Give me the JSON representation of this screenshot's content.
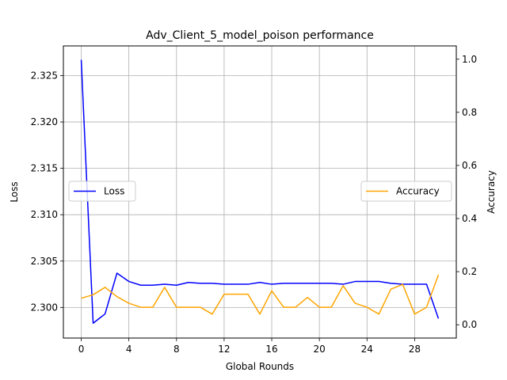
{
  "chart_data": {
    "type": "line",
    "title": "Adv_Client_5_model_poison performance",
    "xlabel": "Global Rounds",
    "ylabel_left": "Loss",
    "ylabel_right": "Accuracy",
    "x": [
      0,
      1,
      2,
      3,
      4,
      5,
      6,
      7,
      8,
      9,
      10,
      11,
      12,
      13,
      14,
      15,
      16,
      17,
      18,
      19,
      20,
      21,
      22,
      23,
      24,
      25,
      26,
      27,
      28,
      29,
      30
    ],
    "xlim": [
      -1.5,
      31.5
    ],
    "xticks": [
      0,
      4,
      8,
      12,
      16,
      20,
      24,
      28
    ],
    "ylim_left": [
      2.2967,
      2.3282
    ],
    "yticks_left": [
      2.3,
      2.305,
      2.31,
      2.315,
      2.32,
      2.325
    ],
    "ytick_labels_left": [
      "2.300",
      "2.305",
      "2.310",
      "2.315",
      "2.320",
      "2.325"
    ],
    "ylim_right": [
      -0.05,
      1.05
    ],
    "yticks_right": [
      0.0,
      0.2,
      0.4,
      0.6,
      0.8,
      1.0
    ],
    "ytick_labels_right": [
      "0.0",
      "0.2",
      "0.4",
      "0.6",
      "0.8",
      "1.0"
    ],
    "grid": true,
    "series": [
      {
        "name": "Loss",
        "axis": "left",
        "color": "#0000ff",
        "legend_position": "center-left",
        "values": [
          2.3267,
          2.2983,
          2.2993,
          2.3037,
          2.3028,
          2.3024,
          2.3024,
          2.3025,
          2.3024,
          2.3027,
          2.3026,
          2.3026,
          2.3025,
          2.3025,
          2.3025,
          2.3027,
          2.3025,
          2.3026,
          2.3026,
          2.3026,
          2.3026,
          2.3026,
          2.3025,
          2.3028,
          2.3028,
          2.3028,
          2.3026,
          2.3025,
          2.3025,
          2.3025,
          2.2988
        ]
      },
      {
        "name": "Accuracy",
        "axis": "right",
        "color": "#ffa500",
        "legend_position": "center-right",
        "values": [
          0.1,
          0.113,
          0.141,
          0.106,
          0.081,
          0.066,
          0.066,
          0.141,
          0.066,
          0.066,
          0.066,
          0.04,
          0.115,
          0.115,
          0.115,
          0.04,
          0.128,
          0.066,
          0.066,
          0.103,
          0.066,
          0.066,
          0.147,
          0.081,
          0.066,
          0.04,
          0.134,
          0.152,
          0.04,
          0.066,
          0.188
        ]
      }
    ]
  }
}
